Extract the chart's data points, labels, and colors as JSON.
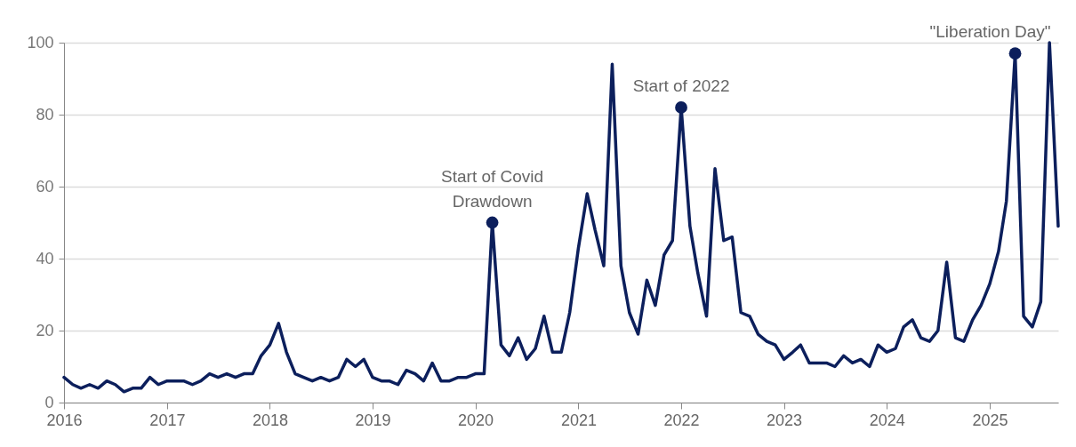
{
  "chart_data": {
    "type": "line",
    "x": [
      "2016-01",
      "2016-02",
      "2016-03",
      "2016-04",
      "2016-05",
      "2016-06",
      "2016-07",
      "2016-08",
      "2016-09",
      "2016-10",
      "2016-11",
      "2016-12",
      "2017-01",
      "2017-02",
      "2017-03",
      "2017-04",
      "2017-05",
      "2017-06",
      "2017-07",
      "2017-08",
      "2017-09",
      "2017-10",
      "2017-11",
      "2017-12",
      "2018-01",
      "2018-02",
      "2018-03",
      "2018-04",
      "2018-05",
      "2018-06",
      "2018-07",
      "2018-08",
      "2018-09",
      "2018-10",
      "2018-11",
      "2018-12",
      "2019-01",
      "2019-02",
      "2019-03",
      "2019-04",
      "2019-05",
      "2019-06",
      "2019-07",
      "2019-08",
      "2019-09",
      "2019-10",
      "2019-11",
      "2019-12",
      "2020-01",
      "2020-02",
      "2020-03",
      "2020-04",
      "2020-05",
      "2020-06",
      "2020-07",
      "2020-08",
      "2020-09",
      "2020-10",
      "2020-11",
      "2020-12",
      "2021-01",
      "2021-02",
      "2021-03",
      "2021-04",
      "2021-05",
      "2021-06",
      "2021-07",
      "2021-08",
      "2021-09",
      "2021-10",
      "2021-11",
      "2021-12",
      "2022-01",
      "2022-02",
      "2022-03",
      "2022-04",
      "2022-05",
      "2022-06",
      "2022-07",
      "2022-08",
      "2022-09",
      "2022-10",
      "2022-11",
      "2022-12",
      "2023-01",
      "2023-02",
      "2023-03",
      "2023-04",
      "2023-05",
      "2023-06",
      "2023-07",
      "2023-08",
      "2023-09",
      "2023-10",
      "2023-11",
      "2023-12",
      "2024-01",
      "2024-02",
      "2024-03",
      "2024-04",
      "2024-05",
      "2024-06",
      "2024-07",
      "2024-08",
      "2024-09",
      "2024-10",
      "2024-11",
      "2024-12",
      "2025-01",
      "2025-02",
      "2025-03",
      "2025-04",
      "2025-05",
      "2025-06",
      "2025-07",
      "2025-08",
      "2025-09"
    ],
    "series": [
      {
        "color": "#0c1f5c",
        "values": [
          7,
          5,
          4,
          5,
          4,
          6,
          5,
          3,
          4,
          4,
          7,
          5,
          6,
          6,
          6,
          5,
          6,
          8,
          7,
          8,
          7,
          8,
          8,
          13,
          16,
          22,
          14,
          8,
          7,
          6,
          7,
          6,
          7,
          12,
          10,
          12,
          7,
          6,
          6,
          5,
          9,
          8,
          6,
          11,
          6,
          6,
          7,
          7,
          8,
          8,
          50,
          16,
          13,
          18,
          12,
          15,
          24,
          14,
          14,
          25,
          43,
          58,
          48,
          38,
          94,
          38,
          25,
          19,
          34,
          27,
          41,
          45,
          82,
          49,
          36,
          24,
          65,
          45,
          46,
          25,
          24,
          19,
          17,
          16,
          12,
          14,
          16,
          11,
          11,
          11,
          10,
          13,
          11,
          12,
          10,
          16,
          14,
          15,
          21,
          23,
          18,
          17,
          20,
          39,
          18,
          17,
          23,
          27,
          33,
          42,
          56,
          97,
          24,
          21,
          28,
          100,
          49
        ]
      }
    ],
    "xlim": [
      "2016-01",
      "2025-09"
    ],
    "xticks": [
      "2016",
      "2017",
      "2018",
      "2019",
      "2020",
      "2021",
      "2022",
      "2023",
      "2024",
      "2025"
    ],
    "ylim": [
      0,
      100
    ],
    "yticks": [
      0,
      20,
      40,
      60,
      80,
      100
    ],
    "grid": "y",
    "marker": "none",
    "line_style": "solid",
    "annotations": [
      {
        "text": "Start of Covid\nDrawdown",
        "x": "2020-03",
        "y": 50
      },
      {
        "text": "Start of 2022",
        "x": "2022-01",
        "y": 82
      },
      {
        "text": "\"Liberation Day\"",
        "x": "2025-04",
        "y": 97
      }
    ]
  }
}
